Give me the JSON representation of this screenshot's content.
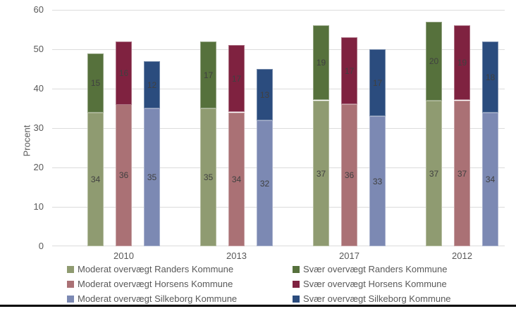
{
  "chart_data": {
    "type": "bar",
    "stacked": true,
    "title": "",
    "xlabel": "",
    "ylabel": "Procent",
    "categories": [
      "2010",
      "2013",
      "2017",
      "2012"
    ],
    "ylim": [
      0,
      60
    ],
    "yticks": [
      0,
      10,
      20,
      30,
      40,
      50,
      60
    ],
    "grid": true,
    "legend_position": "bottom",
    "series": [
      {
        "name": "Moderat overvægt Randers Kommune",
        "color": "#8F9B71",
        "values": [
          34,
          35,
          37,
          37
        ]
      },
      {
        "name": "Svær overvægt Randers Kommune",
        "color": "#56713C",
        "values": [
          15,
          17,
          19,
          20
        ]
      },
      {
        "name": "Moderat overvægt Horsens Kommune",
        "color": "#AA7175",
        "values": [
          36,
          34,
          36,
          37
        ]
      },
      {
        "name": "Svær overvægt Horsens Kommune",
        "color": "#7F2240",
        "values": [
          16,
          17,
          17,
          19
        ]
      },
      {
        "name": "Moderat overvægt Silkeborg Kommune",
        "color": "#7C89B3",
        "values": [
          35,
          32,
          33,
          34
        ]
      },
      {
        "name": "Svær overvægt Silkeborg Kommune",
        "color": "#2B4C7E",
        "values": [
          12,
          13,
          17,
          18
        ]
      }
    ],
    "stacks": [
      [
        "Moderat overvægt Randers Kommune",
        "Svær overvægt Randers Kommune"
      ],
      [
        "Moderat overvægt Horsens Kommune",
        "Svær overvægt Horsens Kommune"
      ],
      [
        "Moderat overvægt Silkeborg Kommune",
        "Svær overvægt Silkeborg Kommune"
      ]
    ],
    "legend_columns": [
      [
        "Moderat overvægt Randers Kommune",
        "Moderat overvægt Horsens Kommune",
        "Moderat overvægt Silkeborg Kommune"
      ],
      [
        "Svær overvægt Randers Kommune",
        "Svær overvægt Horsens Kommune",
        "Svær overvægt Silkeborg Kommune"
      ]
    ],
    "colors": {
      "axis_text": "#595959",
      "data_label": "#404040",
      "gridline": "#dcdcdc",
      "bottom_border": "#000000"
    }
  }
}
